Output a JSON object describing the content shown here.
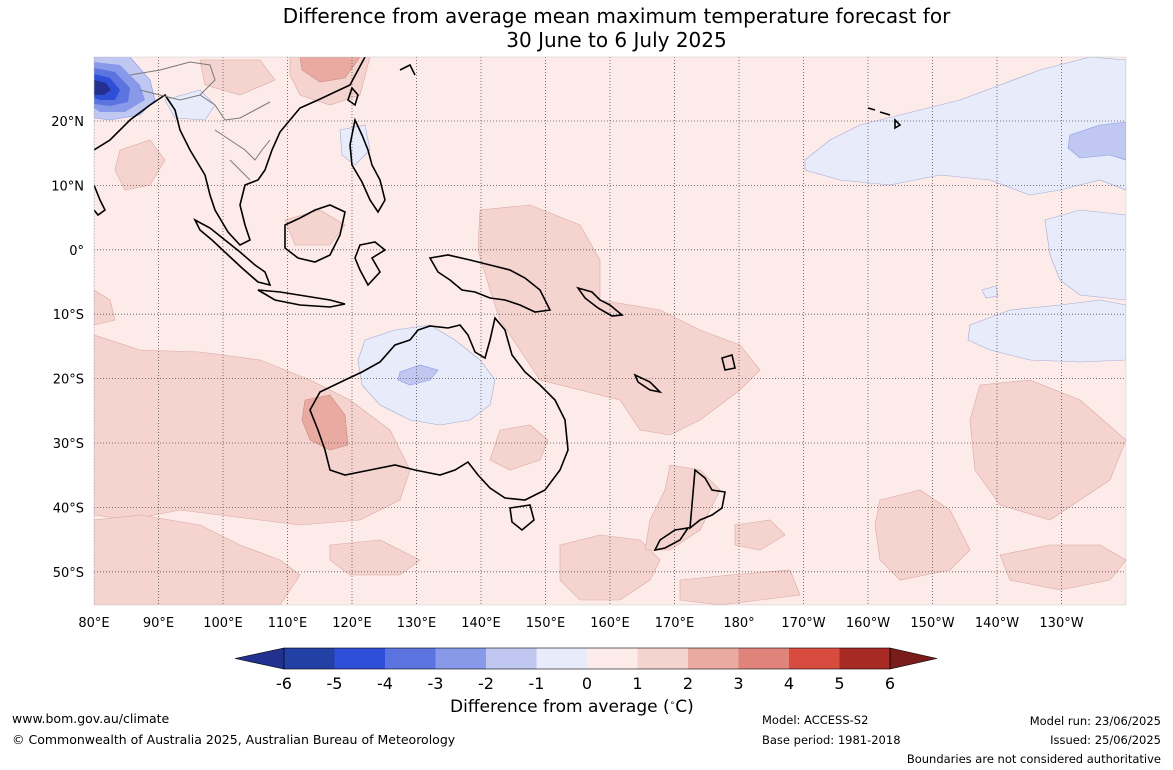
{
  "title": {
    "line1": "Difference from average mean maximum temperature forecast for",
    "line2": "30 June to 6 July 2025"
  },
  "map": {
    "lon_labels": [
      "80°E",
      "90°E",
      "100°E",
      "110°E",
      "120°E",
      "130°E",
      "140°E",
      "150°E",
      "160°E",
      "170°E",
      "180°",
      "170°W",
      "160°W",
      "150°W",
      "140°W",
      "130°W"
    ],
    "lat_labels": [
      "20°N",
      "10°N",
      "0°",
      "10°S",
      "20°S",
      "30°S",
      "40°S",
      "50°S"
    ],
    "background_color": "#fcebe8"
  },
  "colorbar": {
    "labels": [
      "-6",
      "-5",
      "-4",
      "-3",
      "-2",
      "-1",
      "0",
      "1",
      "2",
      "3",
      "4",
      "5",
      "6"
    ],
    "colors": [
      "#22318f",
      "#2340a4",
      "#2f4fd8",
      "#5b74e0",
      "#8799e8",
      "#c0c8f2",
      "#e8ebfa",
      "#fcebe8",
      "#f5d4d0",
      "#e9aaa2",
      "#e0837a",
      "#d84c3f",
      "#a82a24",
      "#7a1c1a"
    ],
    "title": "Difference from average (°C)"
  },
  "footer": {
    "website": "www.bom.gov.au/climate",
    "copyright": "© Commonwealth of Australia 2025, Australian Bureau of Meteorology",
    "model": "Model: ACCESS-S2",
    "base_period": "Base period: 1981-2018",
    "model_run": "Model run: 23/06/2025",
    "issued": "Issued: 25/06/2025",
    "disclaimer": "Boundaries are not considered authoritative"
  }
}
